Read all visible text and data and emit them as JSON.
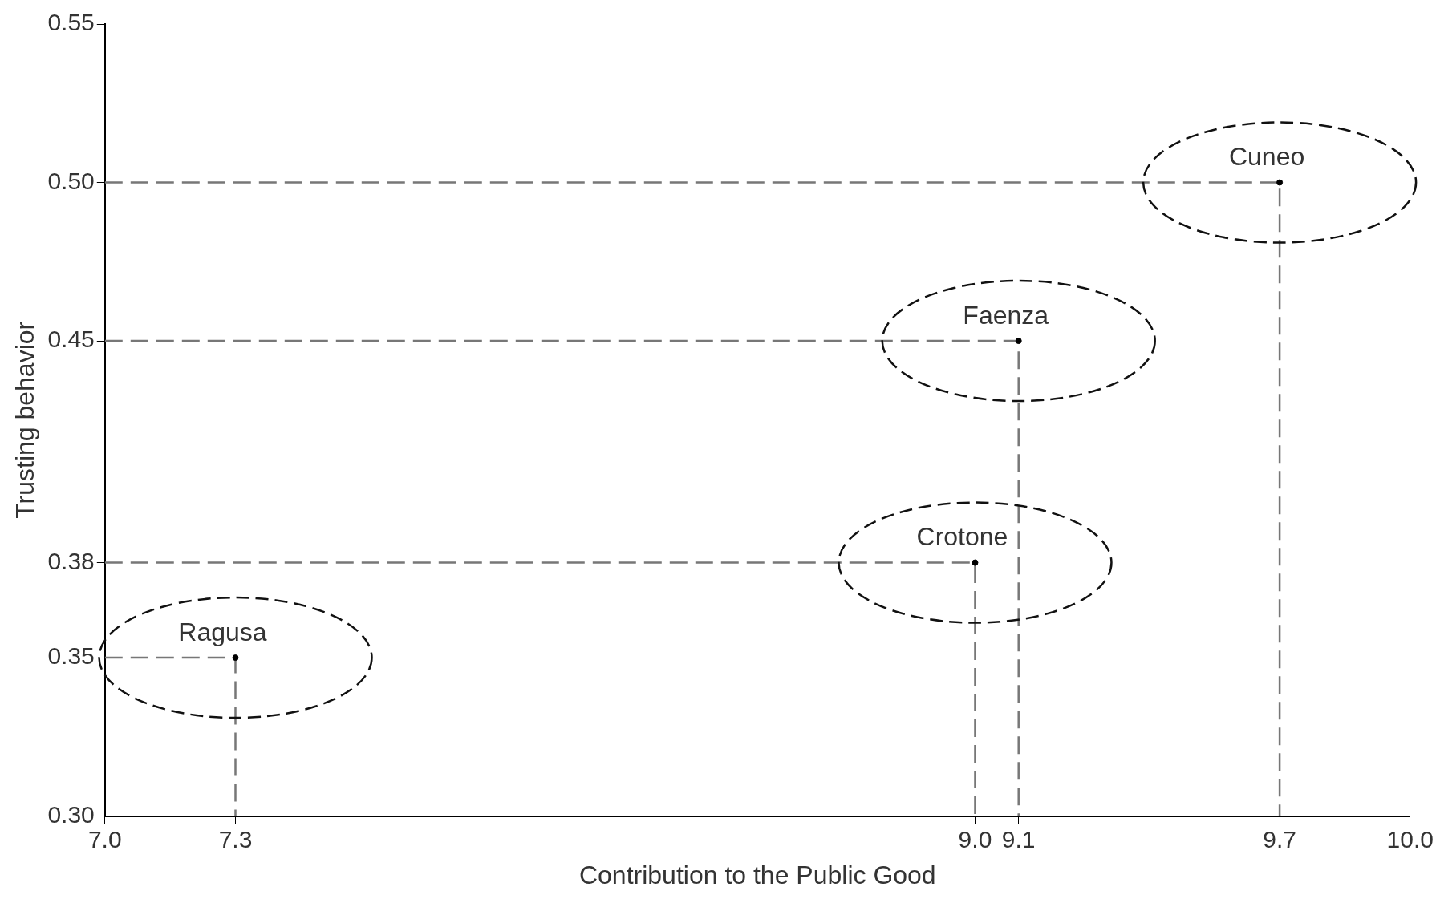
{
  "chart_data": {
    "type": "scatter",
    "xlabel": "Contribution to the Public Good",
    "ylabel": "Trusting behavior",
    "series": [
      {
        "type": "scatter",
        "color": "#000000",
        "marker": "circle",
        "x": [
          7.3,
          9.0,
          9.1,
          9.7
        ],
        "values": [
          0.35,
          0.38,
          0.45,
          0.5
        ]
      },
      {
        "type": "line",
        "color": "#777777",
        "line_style": "dashed",
        "marker": "none",
        "x": [
          7.0,
          7.3,
          7.3
        ],
        "values": [
          0.35,
          0.35,
          0.3
        ]
      },
      {
        "type": "line",
        "color": "#777777",
        "line_style": "dashed",
        "marker": "none",
        "x": [
          7.0,
          9.0,
          9.0
        ],
        "values": [
          0.38,
          0.38,
          0.3
        ]
      },
      {
        "type": "line",
        "color": "#777777",
        "line_style": "dashed",
        "marker": "none",
        "x": [
          7.0,
          9.1,
          9.1
        ],
        "values": [
          0.45,
          0.45,
          0.3
        ]
      },
      {
        "type": "line",
        "color": "#777777",
        "line_style": "dashed",
        "marker": "none",
        "x": [
          7.0,
          9.7,
          9.7
        ],
        "values": [
          0.5,
          0.5,
          0.3
        ]
      }
    ],
    "xlim": [
      7.0,
      10.0
    ],
    "xticks": [
      {
        "value": 7.0,
        "label": "7.0"
      },
      7.3,
      {
        "value": 9.0,
        "label": "9.0"
      },
      9.1,
      9.7,
      {
        "value": 10.0,
        "label": "10.0"
      }
    ],
    "ylim": [
      0.3,
      0.55
    ],
    "yticks": [
      {
        "value": 0.3,
        "label": "0.30"
      },
      0.35,
      0.38,
      0.45,
      {
        "value": 0.5,
        "label": "0.50"
      },
      0.55
    ],
    "grid": false,
    "legend": false,
    "annotations": [
      {
        "text": "Ragusa",
        "x": 7.3,
        "y": 0.35
      },
      {
        "text": "Crotone",
        "x": 9.0,
        "y": 0.38
      },
      {
        "text": "Faenza",
        "x": 9.1,
        "y": 0.45
      },
      {
        "text": "Cuneo",
        "x": 9.7,
        "y": 0.5
      }
    ]
  }
}
